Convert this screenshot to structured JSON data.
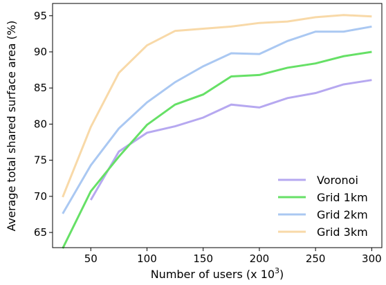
{
  "chart_data": {
    "type": "line",
    "xlabel": {
      "text": "Number of users (x 10",
      "superscript": "3",
      "suffix": ")"
    },
    "ylabel": "Average total shared surface area (%)",
    "x": [
      25,
      50,
      75,
      100,
      125,
      150,
      175,
      200,
      225,
      250,
      275,
      300
    ],
    "series": [
      {
        "name": "Voronoi",
        "color": "#b6a8f0",
        "values": [
          null,
          69.5,
          76.2,
          78.8,
          79.7,
          80.9,
          82.7,
          82.3,
          83.6,
          84.3,
          85.5,
          86.1
        ]
      },
      {
        "name": "Grid 1km",
        "color": "#66e066",
        "values": [
          62.8,
          70.7,
          75.5,
          79.9,
          82.7,
          84.1,
          86.6,
          86.8,
          87.8,
          88.4,
          89.4,
          90.0
        ]
      },
      {
        "name": "Grid 2km",
        "color": "#aac8f2",
        "values": [
          67.6,
          74.3,
          79.4,
          83.0,
          85.8,
          88.0,
          89.8,
          89.7,
          91.5,
          92.8,
          92.8,
          93.5
        ]
      },
      {
        "name": "Grid 3km",
        "color": "#f8d9a8",
        "values": [
          69.9,
          79.6,
          87.1,
          90.9,
          92.9,
          93.2,
          93.5,
          94.0,
          94.2,
          94.8,
          95.1,
          94.9
        ]
      }
    ],
    "xlim": [
      16,
      309
    ],
    "ylim": [
      62.9,
      96.7
    ],
    "xticks": [
      50,
      100,
      150,
      200,
      250,
      300
    ],
    "yticks": [
      65,
      70,
      75,
      80,
      85,
      90,
      95
    ],
    "legend": "lower right"
  }
}
